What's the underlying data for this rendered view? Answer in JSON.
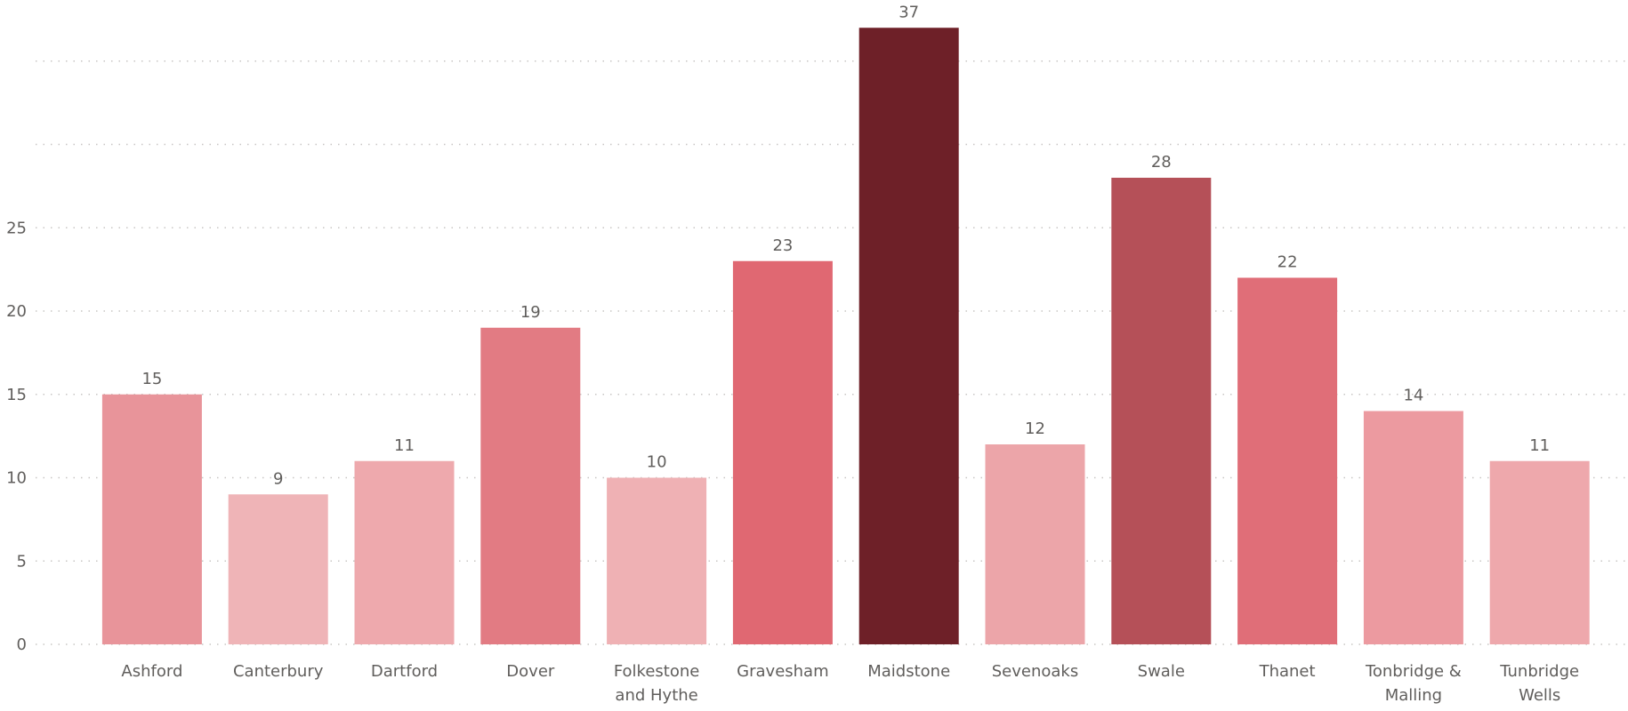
{
  "chart_data": {
    "type": "bar",
    "categories": [
      [
        "Ashford"
      ],
      [
        "Canterbury"
      ],
      [
        "Dartford"
      ],
      [
        "Dover"
      ],
      [
        "Folkestone",
        "and Hythe"
      ],
      [
        "Gravesham"
      ],
      [
        "Maidstone"
      ],
      [
        "Sevenoaks"
      ],
      [
        "Swale"
      ],
      [
        "Thanet"
      ],
      [
        "Tonbridge &",
        "Malling"
      ],
      [
        "Tunbridge",
        "Wells"
      ]
    ],
    "values": [
      15,
      9,
      11,
      19,
      10,
      23,
      37,
      12,
      28,
      22,
      14,
      11
    ],
    "data_labels": [
      "15",
      "9",
      "11",
      "19",
      "10",
      "23",
      "37",
      "12",
      "28",
      "22",
      "14",
      "11"
    ],
    "y_ticks": [
      "0",
      "5",
      "10",
      "15",
      "20",
      "25"
    ],
    "ylim": [
      0,
      37
    ],
    "grid": true,
    "title": "",
    "xlabel": "",
    "ylabel": "",
    "bar_colors": [
      "#e8949a",
      "#efb4b7",
      "#eea9ad",
      "#e27b83",
      "#efb1b4",
      "#e06872",
      "#6e2028",
      "#eca5a9",
      "#b55058",
      "#e06e78",
      "#ec9aa0",
      "#eea8ac"
    ],
    "text_color": "#605e5c",
    "grid_color": "#c8c6c4"
  }
}
